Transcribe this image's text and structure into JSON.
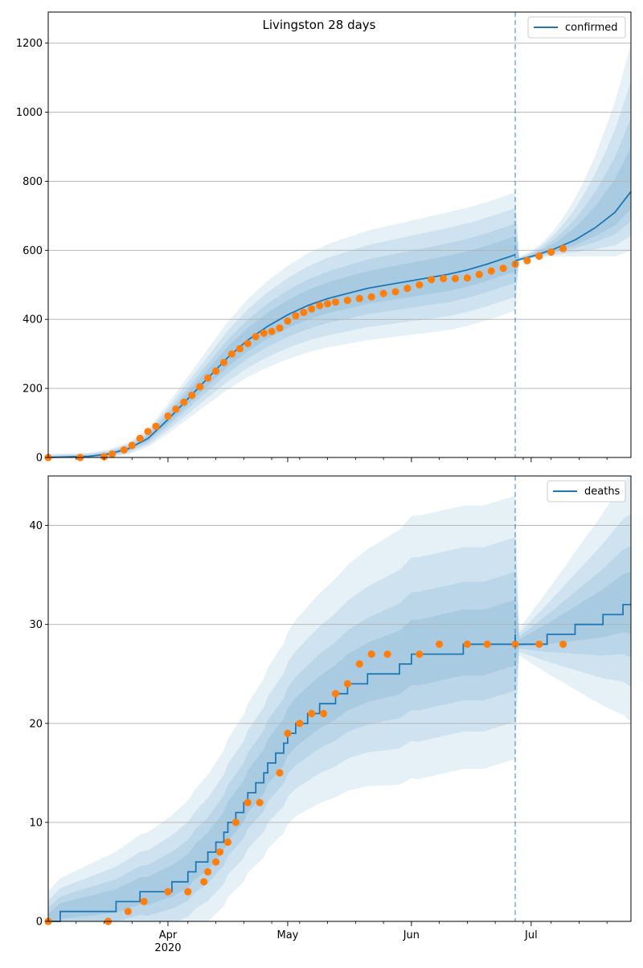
{
  "chart_data": [
    {
      "type": "line",
      "title": "Livingston 28 days",
      "xlabel": "",
      "ylabel": "",
      "x_range": [
        "2020-03-02",
        "2020-07-26"
      ],
      "x_ticks": [
        {
          "date": "2020-04-01",
          "label": "Apr",
          "sublabel": "2020"
        },
        {
          "date": "2020-05-01",
          "label": "May",
          "sublabel": ""
        },
        {
          "date": "2020-06-01",
          "label": "Jun",
          "sublabel": ""
        },
        {
          "date": "2020-07-01",
          "label": "Jul",
          "sublabel": ""
        }
      ],
      "ylim": [
        0,
        1290
      ],
      "yticks": [
        0,
        200,
        400,
        600,
        800,
        1000,
        1200
      ],
      "grid": "horizontal",
      "legend_position": "top-right",
      "forecast_start": "2020-06-27",
      "colors": {
        "model": "#1f77b4",
        "observed": "#ff7f0e",
        "band": "#1f77b4",
        "cutoff": "#1f77b4"
      },
      "series": [
        {
          "name": "confirmed",
          "kind": "line",
          "x": [
            "2020-03-02",
            "2020-03-12",
            "2020-03-17",
            "2020-03-22",
            "2020-03-27",
            "2020-04-01",
            "2020-04-06",
            "2020-04-11",
            "2020-04-16",
            "2020-04-21",
            "2020-04-26",
            "2020-05-01",
            "2020-05-06",
            "2020-05-11",
            "2020-05-16",
            "2020-05-21",
            "2020-05-26",
            "2020-05-31",
            "2020-06-05",
            "2020-06-10",
            "2020-06-15",
            "2020-06-20",
            "2020-06-27"
          ],
          "values": [
            0,
            3,
            10,
            25,
            55,
            110,
            170,
            230,
            290,
            340,
            380,
            413,
            440,
            460,
            475,
            490,
            500,
            510,
            520,
            530,
            543,
            560,
            587
          ]
        },
        {
          "name": "",
          "kind": "line",
          "x": [
            "2020-06-27",
            "2020-07-02",
            "2020-07-07",
            "2020-07-12",
            "2020-07-17",
            "2020-07-22",
            "2020-07-26"
          ],
          "values": [
            570,
            585,
            605,
            630,
            665,
            710,
            770
          ]
        },
        {
          "name": "",
          "kind": "points",
          "x": [
            "2020-03-02",
            "2020-03-10",
            "2020-03-16",
            "2020-03-18",
            "2020-03-21",
            "2020-03-23",
            "2020-03-25",
            "2020-03-27",
            "2020-03-29",
            "2020-04-01",
            "2020-04-03",
            "2020-04-05",
            "2020-04-07",
            "2020-04-09",
            "2020-04-11",
            "2020-04-13",
            "2020-04-15",
            "2020-04-17",
            "2020-04-19",
            "2020-04-21",
            "2020-04-23",
            "2020-04-25",
            "2020-04-27",
            "2020-04-29",
            "2020-05-01",
            "2020-05-03",
            "2020-05-05",
            "2020-05-07",
            "2020-05-09",
            "2020-05-11",
            "2020-05-13",
            "2020-05-16",
            "2020-05-19",
            "2020-05-22",
            "2020-05-25",
            "2020-05-28",
            "2020-05-31",
            "2020-06-03",
            "2020-06-06",
            "2020-06-09",
            "2020-06-12",
            "2020-06-15",
            "2020-06-18",
            "2020-06-21",
            "2020-06-24",
            "2020-06-27",
            "2020-06-30",
            "2020-07-03",
            "2020-07-06",
            "2020-07-09"
          ],
          "values": [
            0,
            0,
            2,
            10,
            22,
            35,
            55,
            75,
            90,
            120,
            140,
            160,
            180,
            205,
            230,
            250,
            275,
            300,
            315,
            330,
            350,
            360,
            365,
            375,
            395,
            410,
            420,
            430,
            440,
            445,
            450,
            455,
            460,
            465,
            475,
            480,
            490,
            500,
            515,
            518,
            518,
            520,
            530,
            540,
            548,
            560,
            570,
            583,
            595,
            605
          ]
        }
      ]
    },
    {
      "type": "line",
      "title": "",
      "xlabel": "",
      "ylabel": "",
      "x_range": [
        "2020-03-02",
        "2020-07-26"
      ],
      "x_ticks": [
        {
          "date": "2020-04-01",
          "label": "Apr",
          "sublabel": "2020"
        },
        {
          "date": "2020-05-01",
          "label": "May",
          "sublabel": ""
        },
        {
          "date": "2020-06-01",
          "label": "Jun",
          "sublabel": ""
        },
        {
          "date": "2020-07-01",
          "label": "Jul",
          "sublabel": ""
        }
      ],
      "ylim": [
        0,
        45
      ],
      "yticks": [
        0,
        10,
        20,
        30,
        40
      ],
      "grid": "horizontal",
      "legend_position": "top-right",
      "forecast_start": "2020-06-27",
      "colors": {
        "model": "#1f77b4",
        "observed": "#ff7f0e",
        "band": "#1f77b4",
        "cutoff": "#1f77b4"
      },
      "series": [
        {
          "name": "deaths",
          "kind": "step",
          "x": [
            "2020-03-02",
            "2020-03-05",
            "2020-03-19",
            "2020-03-25",
            "2020-03-27",
            "2020-04-02",
            "2020-04-06",
            "2020-04-08",
            "2020-04-11",
            "2020-04-13",
            "2020-04-15",
            "2020-04-16",
            "2020-04-18",
            "2020-04-20",
            "2020-04-21",
            "2020-04-23",
            "2020-04-25",
            "2020-04-26",
            "2020-04-28",
            "2020-04-30",
            "2020-05-01",
            "2020-05-03",
            "2020-05-06",
            "2020-05-09",
            "2020-05-13",
            "2020-05-16",
            "2020-05-21",
            "2020-05-29",
            "2020-06-01",
            "2020-06-03",
            "2020-06-14",
            "2020-06-19",
            "2020-06-27"
          ],
          "values": [
            0,
            1,
            2,
            3,
            3,
            4,
            5,
            6,
            7,
            8,
            9,
            10,
            11,
            12,
            13,
            14,
            15,
            16,
            17,
            18,
            19,
            20,
            21,
            22,
            23,
            24,
            25,
            26,
            27,
            27,
            28,
            28,
            29
          ]
        },
        {
          "name": "",
          "kind": "step",
          "x": [
            "2020-06-27",
            "2020-07-05",
            "2020-07-12",
            "2020-07-19",
            "2020-07-24",
            "2020-07-26"
          ],
          "values": [
            28,
            29,
            30,
            31,
            32,
            32
          ]
        },
        {
          "name": "",
          "kind": "points",
          "x": [
            "2020-03-02",
            "2020-03-17",
            "2020-03-22",
            "2020-03-26",
            "2020-04-01",
            "2020-04-06",
            "2020-04-10",
            "2020-04-11",
            "2020-04-13",
            "2020-04-14",
            "2020-04-16",
            "2020-04-18",
            "2020-04-21",
            "2020-04-24",
            "2020-04-29",
            "2020-05-01",
            "2020-05-04",
            "2020-05-07",
            "2020-05-10",
            "2020-05-13",
            "2020-05-16",
            "2020-05-19",
            "2020-05-22",
            "2020-05-26",
            "2020-06-03",
            "2020-06-08",
            "2020-06-15",
            "2020-06-20",
            "2020-06-27",
            "2020-07-03",
            "2020-07-09"
          ],
          "values": [
            0,
            0,
            1,
            2,
            3,
            3,
            4,
            5,
            6,
            7,
            8,
            10,
            12,
            12,
            15,
            19,
            20,
            21,
            21,
            23,
            24,
            26,
            27,
            27,
            27,
            28,
            28,
            28,
            28,
            28,
            28
          ]
        }
      ]
    }
  ]
}
